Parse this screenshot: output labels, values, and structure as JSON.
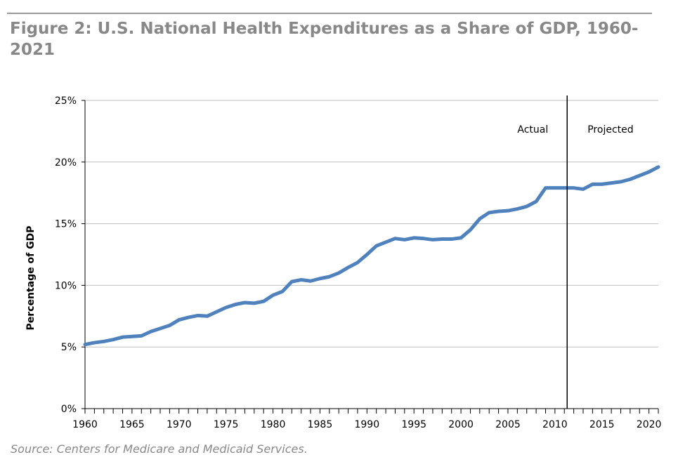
{
  "figure": {
    "title": "Figure 2: U.S. National Health Expenditures as a Share of GDP, 1960-2021",
    "source": "Source: Centers for Medicare and Medicaid Services."
  },
  "chart_data": {
    "type": "line",
    "title": "",
    "xlabel": "",
    "ylabel": "Percentage of GDP",
    "xlim": [
      1960,
      2021
    ],
    "ylim": [
      0,
      25
    ],
    "grid": "horizontal",
    "x_ticks": [
      1960,
      1965,
      1970,
      1975,
      1980,
      1985,
      1990,
      1995,
      2000,
      2005,
      2010,
      2015,
      2020
    ],
    "x_tick_labels": [
      "1960",
      "1965",
      "1970",
      "1975",
      "1980",
      "1985",
      "1990",
      "1995",
      "2000",
      "2005",
      "2010",
      "2015",
      "2020"
    ],
    "y_ticks": [
      0,
      5,
      10,
      15,
      20,
      25
    ],
    "y_tick_labels": [
      "0%",
      "5%",
      "10%",
      "15%",
      "20%",
      "25%"
    ],
    "divider": {
      "x": 2011.3,
      "left_label": "Actual",
      "right_label": "Projected"
    },
    "series": [
      {
        "color": "#4f81bd",
        "x": [
          1960,
          1961,
          1962,
          1963,
          1964,
          1965,
          1966,
          1967,
          1968,
          1969,
          1970,
          1971,
          1972,
          1973,
          1974,
          1975,
          1976,
          1977,
          1978,
          1979,
          1980,
          1981,
          1982,
          1983,
          1984,
          1985,
          1986,
          1987,
          1988,
          1989,
          1990,
          1991,
          1992,
          1993,
          1994,
          1995,
          1996,
          1997,
          1998,
          1999,
          2000,
          2001,
          2002,
          2003,
          2004,
          2005,
          2006,
          2007,
          2008,
          2009,
          2010,
          2011,
          2012,
          2013,
          2014,
          2015,
          2016,
          2017,
          2018,
          2019,
          2020,
          2021
        ],
        "values": [
          5.2,
          5.35,
          5.45,
          5.6,
          5.8,
          5.85,
          5.9,
          6.25,
          6.5,
          6.75,
          7.2,
          7.4,
          7.55,
          7.5,
          7.85,
          8.2,
          8.45,
          8.6,
          8.55,
          8.7,
          9.2,
          9.5,
          10.3,
          10.45,
          10.35,
          10.55,
          10.7,
          11.0,
          11.45,
          11.85,
          12.5,
          13.2,
          13.5,
          13.8,
          13.7,
          13.85,
          13.8,
          13.7,
          13.75,
          13.75,
          13.85,
          14.5,
          15.4,
          15.9,
          16.0,
          16.05,
          16.2,
          16.4,
          16.8,
          17.9,
          17.9,
          17.9,
          17.9,
          17.8,
          18.2,
          18.2,
          18.3,
          18.4,
          18.6,
          18.9,
          19.2,
          19.6
        ]
      }
    ]
  }
}
